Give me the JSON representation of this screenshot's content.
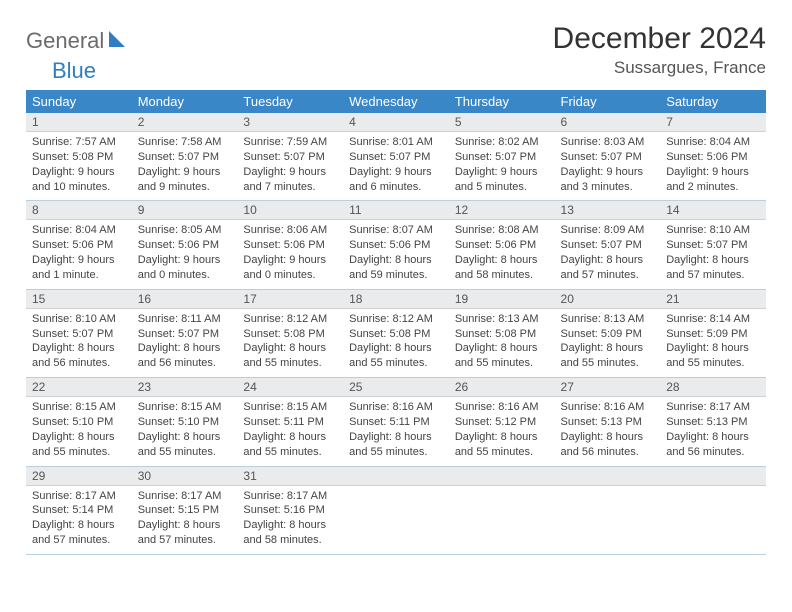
{
  "logo": {
    "part1": "General",
    "part2": "Blue"
  },
  "title": "December 2024",
  "location": "Sussargues, France",
  "colors": {
    "header_bg": "#3a87c8",
    "header_text": "#ffffff",
    "daynum_bg": "#e9ebec",
    "border": "#b9cfe0",
    "logo_gray": "#6b6b6b",
    "logo_blue": "#2f7ec1"
  },
  "weekdays": [
    "Sunday",
    "Monday",
    "Tuesday",
    "Wednesday",
    "Thursday",
    "Friday",
    "Saturday"
  ],
  "weeks": [
    [
      {
        "num": "1",
        "sunrise": "Sunrise: 7:57 AM",
        "sunset": "Sunset: 5:08 PM",
        "daylight": "Daylight: 9 hours and 10 minutes."
      },
      {
        "num": "2",
        "sunrise": "Sunrise: 7:58 AM",
        "sunset": "Sunset: 5:07 PM",
        "daylight": "Daylight: 9 hours and 9 minutes."
      },
      {
        "num": "3",
        "sunrise": "Sunrise: 7:59 AM",
        "sunset": "Sunset: 5:07 PM",
        "daylight": "Daylight: 9 hours and 7 minutes."
      },
      {
        "num": "4",
        "sunrise": "Sunrise: 8:01 AM",
        "sunset": "Sunset: 5:07 PM",
        "daylight": "Daylight: 9 hours and 6 minutes."
      },
      {
        "num": "5",
        "sunrise": "Sunrise: 8:02 AM",
        "sunset": "Sunset: 5:07 PM",
        "daylight": "Daylight: 9 hours and 5 minutes."
      },
      {
        "num": "6",
        "sunrise": "Sunrise: 8:03 AM",
        "sunset": "Sunset: 5:07 PM",
        "daylight": "Daylight: 9 hours and 3 minutes."
      },
      {
        "num": "7",
        "sunrise": "Sunrise: 8:04 AM",
        "sunset": "Sunset: 5:06 PM",
        "daylight": "Daylight: 9 hours and 2 minutes."
      }
    ],
    [
      {
        "num": "8",
        "sunrise": "Sunrise: 8:04 AM",
        "sunset": "Sunset: 5:06 PM",
        "daylight": "Daylight: 9 hours and 1 minute."
      },
      {
        "num": "9",
        "sunrise": "Sunrise: 8:05 AM",
        "sunset": "Sunset: 5:06 PM",
        "daylight": "Daylight: 9 hours and 0 minutes."
      },
      {
        "num": "10",
        "sunrise": "Sunrise: 8:06 AM",
        "sunset": "Sunset: 5:06 PM",
        "daylight": "Daylight: 9 hours and 0 minutes."
      },
      {
        "num": "11",
        "sunrise": "Sunrise: 8:07 AM",
        "sunset": "Sunset: 5:06 PM",
        "daylight": "Daylight: 8 hours and 59 minutes."
      },
      {
        "num": "12",
        "sunrise": "Sunrise: 8:08 AM",
        "sunset": "Sunset: 5:06 PM",
        "daylight": "Daylight: 8 hours and 58 minutes."
      },
      {
        "num": "13",
        "sunrise": "Sunrise: 8:09 AM",
        "sunset": "Sunset: 5:07 PM",
        "daylight": "Daylight: 8 hours and 57 minutes."
      },
      {
        "num": "14",
        "sunrise": "Sunrise: 8:10 AM",
        "sunset": "Sunset: 5:07 PM",
        "daylight": "Daylight: 8 hours and 57 minutes."
      }
    ],
    [
      {
        "num": "15",
        "sunrise": "Sunrise: 8:10 AM",
        "sunset": "Sunset: 5:07 PM",
        "daylight": "Daylight: 8 hours and 56 minutes."
      },
      {
        "num": "16",
        "sunrise": "Sunrise: 8:11 AM",
        "sunset": "Sunset: 5:07 PM",
        "daylight": "Daylight: 8 hours and 56 minutes."
      },
      {
        "num": "17",
        "sunrise": "Sunrise: 8:12 AM",
        "sunset": "Sunset: 5:08 PM",
        "daylight": "Daylight: 8 hours and 55 minutes."
      },
      {
        "num": "18",
        "sunrise": "Sunrise: 8:12 AM",
        "sunset": "Sunset: 5:08 PM",
        "daylight": "Daylight: 8 hours and 55 minutes."
      },
      {
        "num": "19",
        "sunrise": "Sunrise: 8:13 AM",
        "sunset": "Sunset: 5:08 PM",
        "daylight": "Daylight: 8 hours and 55 minutes."
      },
      {
        "num": "20",
        "sunrise": "Sunrise: 8:13 AM",
        "sunset": "Sunset: 5:09 PM",
        "daylight": "Daylight: 8 hours and 55 minutes."
      },
      {
        "num": "21",
        "sunrise": "Sunrise: 8:14 AM",
        "sunset": "Sunset: 5:09 PM",
        "daylight": "Daylight: 8 hours and 55 minutes."
      }
    ],
    [
      {
        "num": "22",
        "sunrise": "Sunrise: 8:15 AM",
        "sunset": "Sunset: 5:10 PM",
        "daylight": "Daylight: 8 hours and 55 minutes."
      },
      {
        "num": "23",
        "sunrise": "Sunrise: 8:15 AM",
        "sunset": "Sunset: 5:10 PM",
        "daylight": "Daylight: 8 hours and 55 minutes."
      },
      {
        "num": "24",
        "sunrise": "Sunrise: 8:15 AM",
        "sunset": "Sunset: 5:11 PM",
        "daylight": "Daylight: 8 hours and 55 minutes."
      },
      {
        "num": "25",
        "sunrise": "Sunrise: 8:16 AM",
        "sunset": "Sunset: 5:11 PM",
        "daylight": "Daylight: 8 hours and 55 minutes."
      },
      {
        "num": "26",
        "sunrise": "Sunrise: 8:16 AM",
        "sunset": "Sunset: 5:12 PM",
        "daylight": "Daylight: 8 hours and 55 minutes."
      },
      {
        "num": "27",
        "sunrise": "Sunrise: 8:16 AM",
        "sunset": "Sunset: 5:13 PM",
        "daylight": "Daylight: 8 hours and 56 minutes."
      },
      {
        "num": "28",
        "sunrise": "Sunrise: 8:17 AM",
        "sunset": "Sunset: 5:13 PM",
        "daylight": "Daylight: 8 hours and 56 minutes."
      }
    ],
    [
      {
        "num": "29",
        "sunrise": "Sunrise: 8:17 AM",
        "sunset": "Sunset: 5:14 PM",
        "daylight": "Daylight: 8 hours and 57 minutes."
      },
      {
        "num": "30",
        "sunrise": "Sunrise: 8:17 AM",
        "sunset": "Sunset: 5:15 PM",
        "daylight": "Daylight: 8 hours and 57 minutes."
      },
      {
        "num": "31",
        "sunrise": "Sunrise: 8:17 AM",
        "sunset": "Sunset: 5:16 PM",
        "daylight": "Daylight: 8 hours and 58 minutes."
      },
      {
        "empty": true
      },
      {
        "empty": true
      },
      {
        "empty": true
      },
      {
        "empty": true
      }
    ]
  ]
}
